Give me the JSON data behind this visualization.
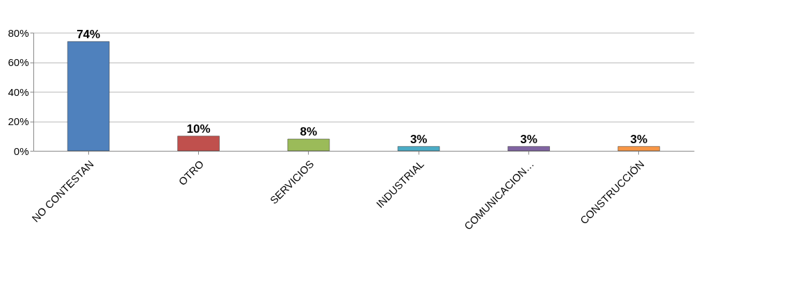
{
  "chart_data": {
    "type": "bar",
    "categories": [
      "NO CONTESTAN",
      "OTRO",
      "SERVICIOS",
      "INDUSTRIAL",
      "COMUNICACION…",
      "CONSTRUCCIÓN"
    ],
    "values": [
      74,
      10,
      8,
      3,
      3,
      3
    ],
    "colors": [
      "#4f81bd",
      "#c0504d",
      "#9bbb59",
      "#4bacc6",
      "#8064a2",
      "#f79646"
    ],
    "value_labels": [
      "74%",
      "10%",
      "8%",
      "3%",
      "3%",
      "3%"
    ],
    "ylim": [
      0,
      80
    ],
    "yticks": [
      {
        "value": 0,
        "label": "0%"
      },
      {
        "value": 20,
        "label": "20%"
      },
      {
        "value": 40,
        "label": "40%"
      },
      {
        "value": 60,
        "label": "60%"
      },
      {
        "value": 80,
        "label": "80%"
      }
    ],
    "grid": "y"
  }
}
